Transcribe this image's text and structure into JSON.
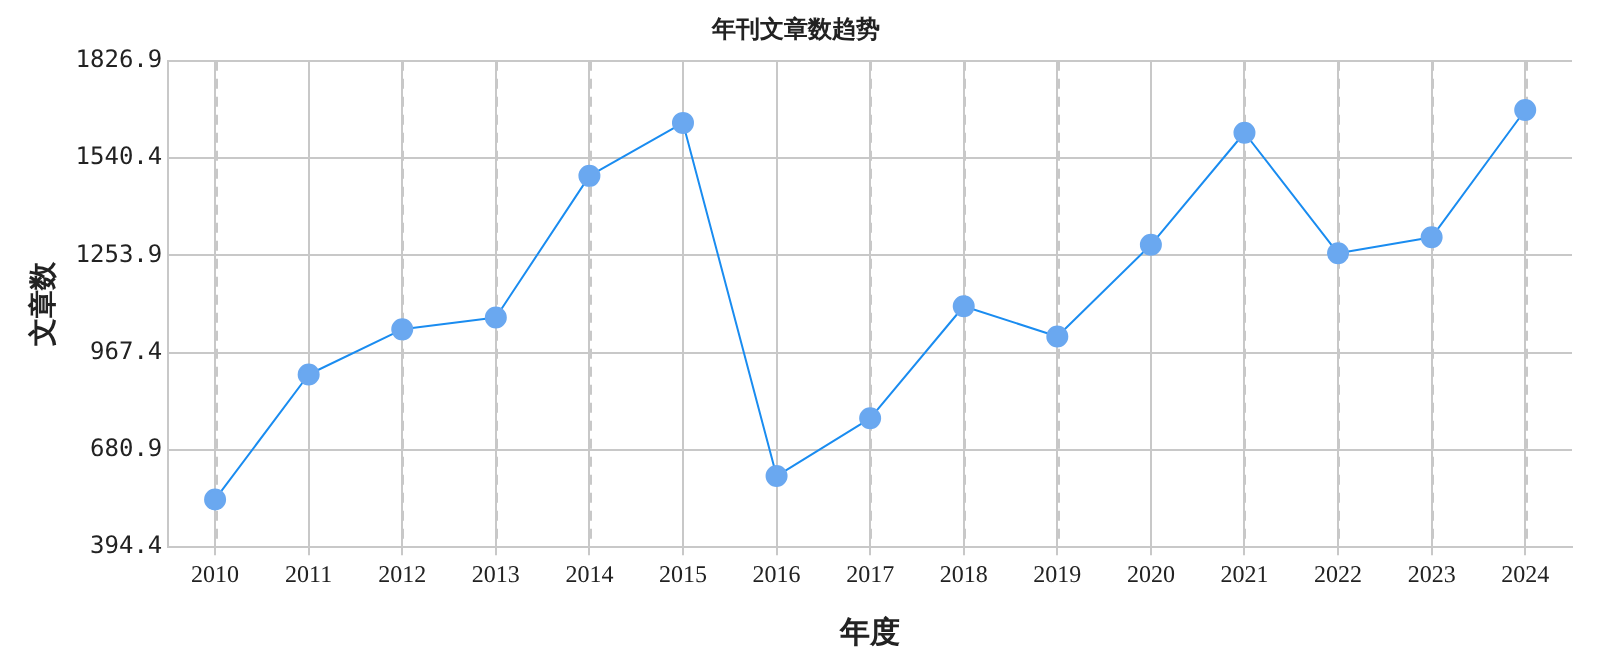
{
  "chart_data": {
    "type": "line",
    "title": "年刊文章数趋势",
    "xlabel": "年度",
    "ylabel": "文章数",
    "categories": [
      "2010",
      "2011",
      "2012",
      "2013",
      "2014",
      "2015",
      "2016",
      "2017",
      "2018",
      "2019",
      "2020",
      "2021",
      "2022",
      "2023",
      "2024"
    ],
    "series": [
      {
        "color": "#1a8cf0",
        "values": [
          535,
          903,
          1036,
          1071,
          1488,
          1644,
          604,
          774,
          1104,
          1015,
          1285,
          1615,
          1260,
          1307,
          1682
        ]
      }
    ],
    "ylim": [
      394.4,
      1826.9
    ],
    "yticks": [
      394.4,
      680.9,
      967.4,
      1253.9,
      1540.4,
      1826.9
    ],
    "grid": true,
    "legend": false,
    "marker": "circle",
    "line_style": "solid"
  }
}
